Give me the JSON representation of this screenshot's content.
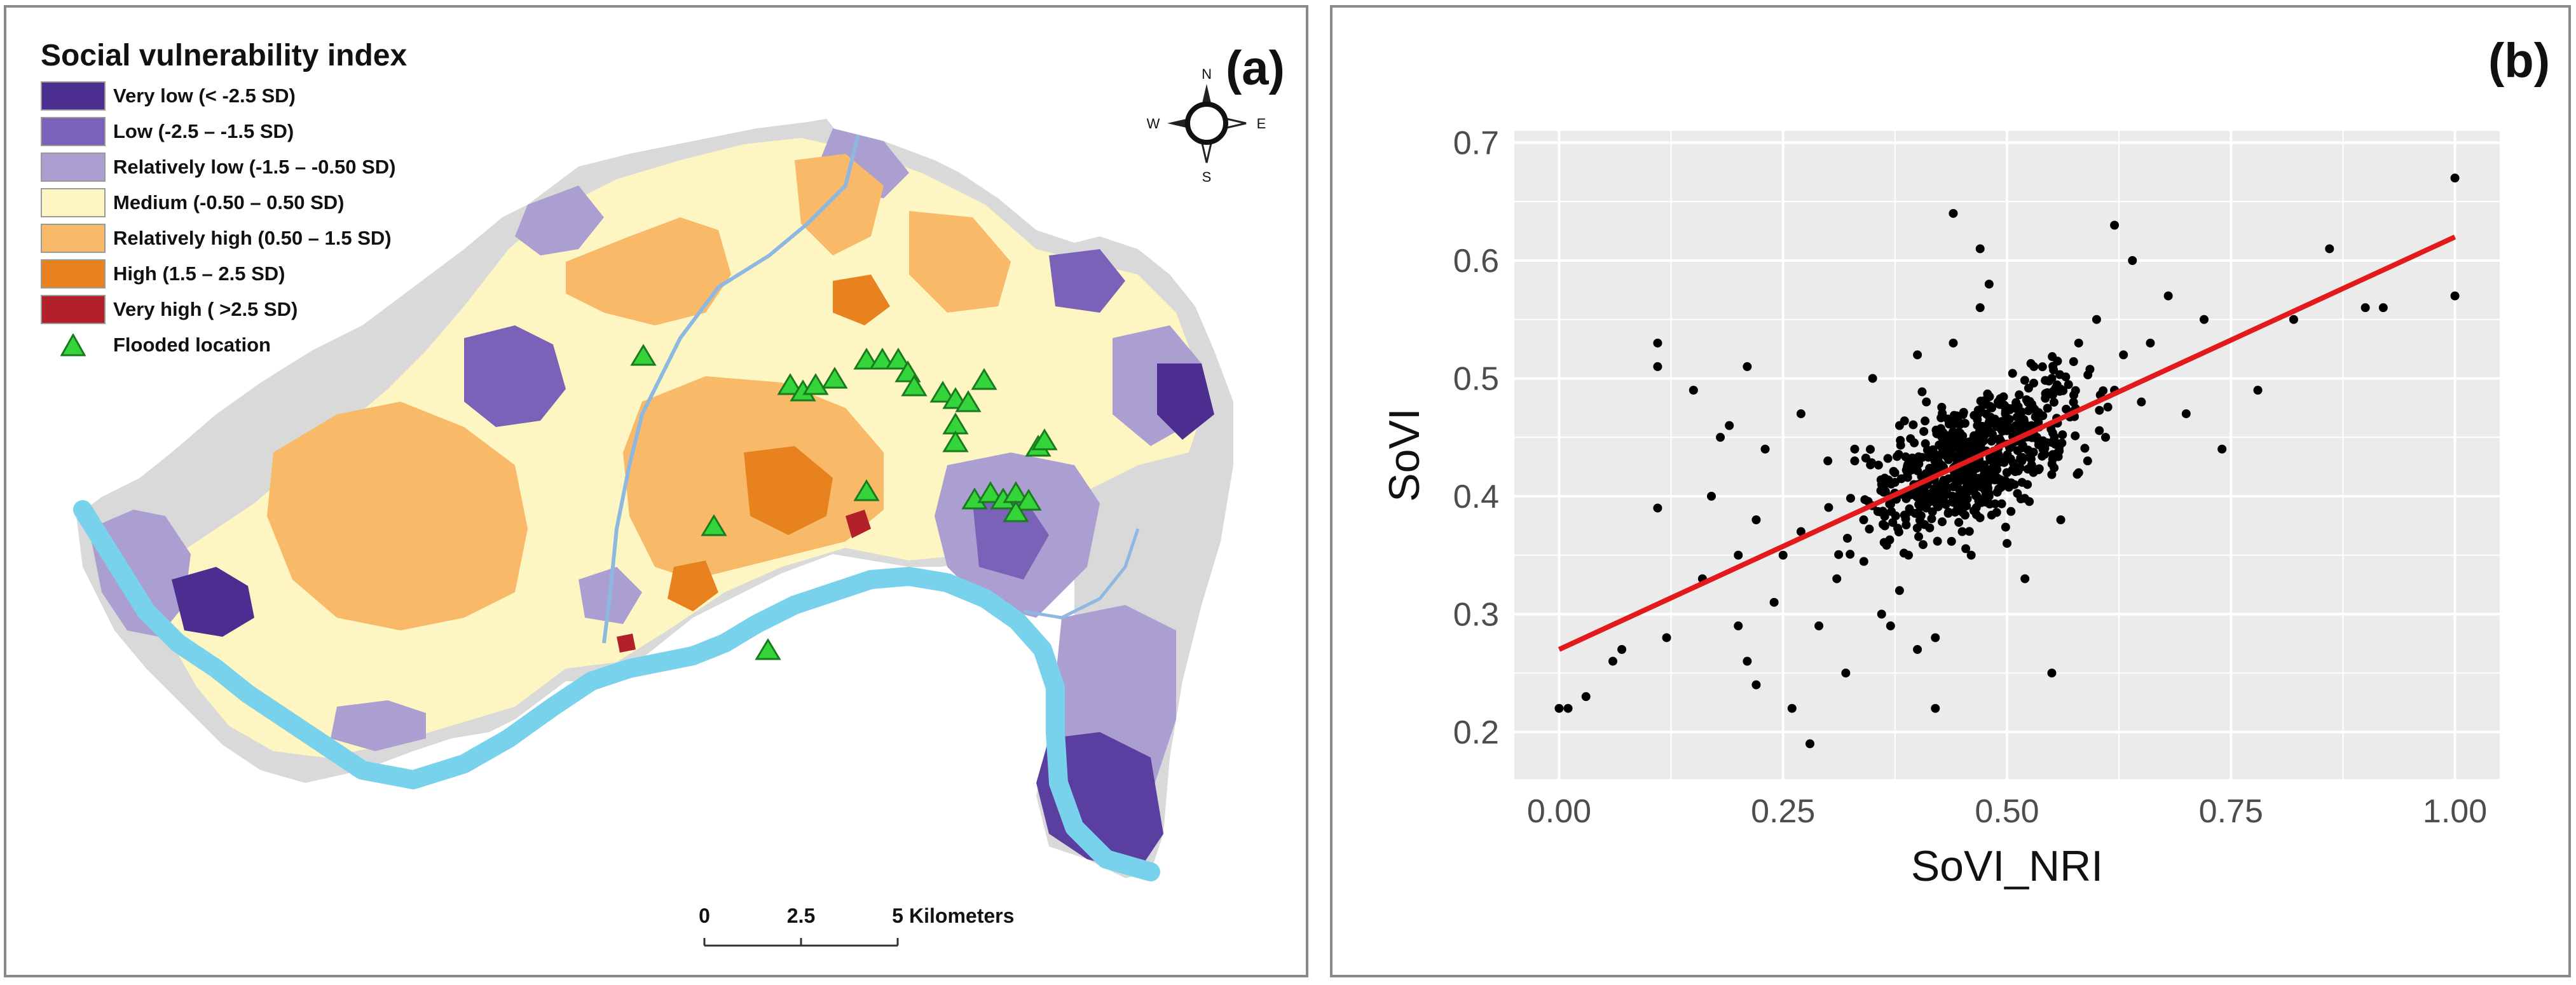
{
  "panel_a": {
    "label": "(a)",
    "legend": {
      "title": "Social vulnerability index",
      "items": [
        {
          "label": "Very low (< -2.5 SD)",
          "color": "#4b2e8f"
        },
        {
          "label": "Low (-2.5 – -1.5 SD)",
          "color": "#7a62b8"
        },
        {
          "label": "Relatively low (-1.5 – -0.50 SD)",
          "color": "#ab9fd1"
        },
        {
          "label": "Medium (-0.50 – 0.50 SD)",
          "color": "#fdf6c3"
        },
        {
          "label": "Relatively high (0.50 – 1.5 SD)",
          "color": "#f8b968"
        },
        {
          "label": "High (1.5 – 2.5 SD)",
          "color": "#e8821e"
        },
        {
          "label": "Very high ( >2.5 SD)",
          "color": "#b2202a"
        }
      ],
      "flood_label": "Flooded location",
      "flood_color": "#35d43a"
    },
    "compass": {
      "n": "N",
      "s": "S",
      "e": "E",
      "w": "W"
    },
    "scale_bar": {
      "ticks": [
        "0",
        "2.5",
        "5"
      ],
      "unit": "Kilometers"
    },
    "river_color": "#79d2ec",
    "background_color": "#d9d9d9"
  },
  "panel_b": {
    "label": "(b)",
    "background_color": "#ebebeb",
    "line_color": "#e31a1c"
  },
  "chart_data": {
    "type": "scatter",
    "title": "",
    "xlabel": "SoVI_NRI",
    "ylabel": "SoVI",
    "xlim": [
      -0.05,
      1.05
    ],
    "ylim": [
      0.16,
      0.71
    ],
    "xticks": [
      0.0,
      0.25,
      0.5,
      0.75,
      1.0
    ],
    "xtick_labels": [
      "0.00",
      "0.25",
      "0.50",
      "0.75",
      "1.00"
    ],
    "yticks": [
      0.2,
      0.3,
      0.4,
      0.5,
      0.6,
      0.7
    ],
    "ytick_labels": [
      "0.2",
      "0.3",
      "0.4",
      "0.5",
      "0.6",
      "0.7"
    ],
    "regression": {
      "x": [
        0.0,
        1.0
      ],
      "y": [
        0.27,
        0.62
      ]
    },
    "points": {
      "x": [
        0.0,
        0.01,
        0.03,
        0.06,
        0.07,
        0.11,
        0.11,
        0.11,
        0.12,
        0.15,
        0.16,
        0.17,
        0.18,
        0.19,
        0.2,
        0.2,
        0.21,
        0.21,
        0.22,
        0.22,
        0.23,
        0.24,
        0.25,
        0.26,
        0.27,
        0.27,
        0.28,
        0.29,
        0.3,
        0.31,
        0.32,
        0.33,
        0.34,
        0.35,
        0.36,
        0.37,
        0.38,
        0.39,
        0.4,
        0.4,
        0.41,
        0.41,
        0.42,
        0.43,
        0.44,
        0.45,
        0.46,
        0.47,
        0.48,
        0.49,
        0.5,
        0.51,
        0.52,
        0.53,
        0.54,
        0.55,
        0.56,
        0.57,
        0.58,
        0.59,
        0.6,
        0.61,
        0.62,
        0.63,
        0.64,
        0.65,
        0.66,
        0.68,
        0.7,
        0.72,
        0.74,
        0.78,
        0.82,
        0.86,
        0.9,
        0.92,
        1.0,
        1.0,
        0.44,
        0.47,
        0.5,
        0.38,
        0.42,
        0.55,
        0.33,
        0.36,
        0.43,
        0.46,
        0.52,
        0.58,
        0.62,
        0.48
      ],
      "y": [
        0.22,
        0.22,
        0.23,
        0.26,
        0.27,
        0.53,
        0.51,
        0.39,
        0.28,
        0.49,
        0.33,
        0.4,
        0.45,
        0.46,
        0.35,
        0.29,
        0.26,
        0.51,
        0.38,
        0.24,
        0.44,
        0.31,
        0.35,
        0.22,
        0.47,
        0.37,
        0.19,
        0.29,
        0.43,
        0.33,
        0.25,
        0.44,
        0.38,
        0.5,
        0.41,
        0.29,
        0.46,
        0.35,
        0.52,
        0.27,
        0.39,
        0.48,
        0.22,
        0.41,
        0.53,
        0.37,
        0.44,
        0.56,
        0.4,
        0.48,
        0.42,
        0.46,
        0.33,
        0.51,
        0.44,
        0.5,
        0.38,
        0.47,
        0.53,
        0.43,
        0.55,
        0.45,
        0.49,
        0.52,
        0.6,
        0.48,
        0.53,
        0.57,
        0.47,
        0.55,
        0.44,
        0.49,
        0.55,
        0.61,
        0.56,
        0.56,
        0.67,
        0.57,
        0.64,
        0.61,
        0.36,
        0.32,
        0.28,
        0.25,
        0.43,
        0.3,
        0.4,
        0.35,
        0.45,
        0.42,
        0.63,
        0.58
      ]
    }
  }
}
